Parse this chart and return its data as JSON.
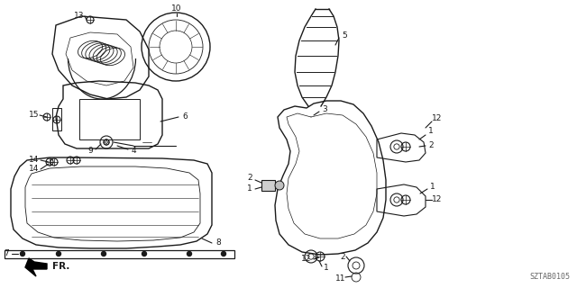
{
  "background_color": "#ffffff",
  "line_color": "#1a1a1a",
  "label_color": "#1a1a1a",
  "part_number": "SZTAB0105",
  "lw": 0.9,
  "label_fs": 6.5,
  "figsize": [
    6.4,
    3.2
  ],
  "dpi": 100
}
